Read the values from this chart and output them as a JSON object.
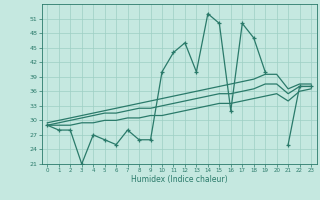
{
  "x": [
    0,
    1,
    2,
    3,
    4,
    5,
    6,
    7,
    8,
    9,
    10,
    11,
    12,
    13,
    14,
    15,
    16,
    17,
    18,
    19,
    20,
    21,
    22,
    23
  ],
  "y_main": [
    29,
    28,
    28,
    21,
    27,
    26,
    25,
    28,
    26,
    26,
    40,
    44,
    46,
    40,
    52,
    50,
    32,
    50,
    47,
    40,
    null,
    25,
    37,
    37
  ],
  "line_upper": [
    29.5,
    30.0,
    30.5,
    31.0,
    31.5,
    32.0,
    32.5,
    33.0,
    33.5,
    34.0,
    34.5,
    35.0,
    35.5,
    36.0,
    36.5,
    37.0,
    37.5,
    38.0,
    38.5,
    39.5,
    39.5,
    36.5,
    37.5,
    37.5
  ],
  "line_mid": [
    29.0,
    29.5,
    30.0,
    30.5,
    31.0,
    31.5,
    31.5,
    32.0,
    32.5,
    32.5,
    33.0,
    33.5,
    34.0,
    34.5,
    35.0,
    35.5,
    35.5,
    36.0,
    36.5,
    37.5,
    37.5,
    35.5,
    37.0,
    37.0
  ],
  "line_lower": [
    29.0,
    29.0,
    29.0,
    29.5,
    29.5,
    30.0,
    30.0,
    30.5,
    30.5,
    31.0,
    31.0,
    31.5,
    32.0,
    32.5,
    33.0,
    33.5,
    33.5,
    34.0,
    34.5,
    35.0,
    35.5,
    34.0,
    36.0,
    36.5
  ],
  "xlabel": "Humidex (Indice chaleur)",
  "ylim": [
    21,
    54
  ],
  "xlim": [
    -0.5,
    23.5
  ],
  "yticks": [
    21,
    24,
    27,
    30,
    33,
    36,
    39,
    42,
    45,
    48,
    51
  ],
  "xticks": [
    0,
    1,
    2,
    3,
    4,
    5,
    6,
    7,
    8,
    9,
    10,
    11,
    12,
    13,
    14,
    15,
    16,
    17,
    18,
    19,
    20,
    21,
    22,
    23
  ],
  "color": "#2a7a6a",
  "bg_color": "#c5e8e0",
  "grid_color": "#9ecfc4"
}
